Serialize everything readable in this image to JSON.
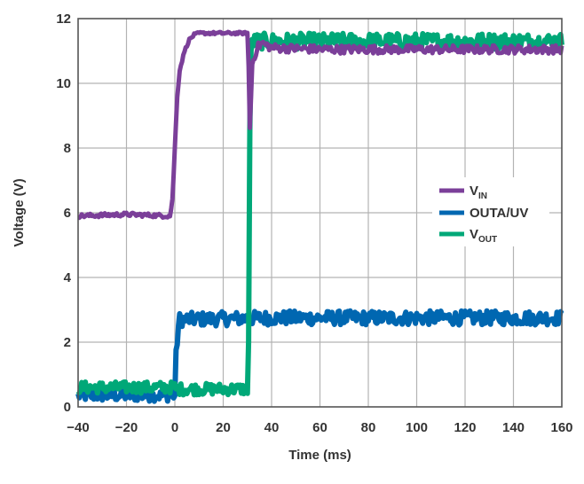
{
  "chart_data": {
    "type": "line",
    "title": "",
    "xlabel": "Time (ms)",
    "ylabel": "Voltage (V)",
    "xlim": [
      -40,
      160
    ],
    "ylim": [
      0,
      12
    ],
    "xticks": [
      -40,
      -20,
      0,
      20,
      40,
      60,
      80,
      100,
      120,
      140,
      160
    ],
    "yticks": [
      0,
      2,
      4,
      6,
      8,
      10,
      12
    ],
    "xtick_labels": [
      "−40",
      "−20",
      "0",
      "20",
      "40",
      "60",
      "80",
      "100",
      "120",
      "140",
      "160"
    ],
    "ytick_labels": [
      "0",
      "2",
      "4",
      "6",
      "8",
      "10",
      "12"
    ],
    "grid": true,
    "legend_position": "right-middle",
    "series": [
      {
        "name": "V_IN",
        "legend_main": "V",
        "legend_sub": "IN",
        "color": "#7b3f99",
        "x": [
          -40,
          -20,
          -2,
          -1,
          0,
          1,
          2,
          4,
          6,
          8,
          10,
          20,
          30,
          30.5,
          31,
          32,
          34,
          36,
          40,
          60,
          100,
          160
        ],
        "y": [
          5.9,
          5.95,
          5.9,
          6.4,
          8.0,
          9.6,
          10.4,
          11.0,
          11.35,
          11.5,
          11.55,
          11.55,
          11.55,
          10.5,
          8.6,
          10.6,
          11.1,
          11.25,
          11.1,
          11.05,
          11.05,
          11.05
        ]
      },
      {
        "name": "OUTA/UV",
        "legend_main": "OUTA/UV",
        "color": "#0067b1",
        "x": [
          -40,
          -1,
          0,
          0.5,
          1.5,
          2,
          40,
          100,
          160
        ],
        "y": [
          0.35,
          0.35,
          0.35,
          1.6,
          2.5,
          2.7,
          2.75,
          2.75,
          2.75
        ]
      },
      {
        "name": "V_OUT",
        "legend_main": "V",
        "legend_sub": "OUT",
        "color": "#00a878",
        "x": [
          -40,
          0,
          1,
          30,
          30.5,
          31,
          31.5,
          32,
          40,
          100,
          160
        ],
        "y": [
          0.6,
          0.6,
          0.55,
          0.55,
          2.0,
          8.6,
          10.8,
          11.3,
          11.3,
          11.3,
          11.3
        ]
      }
    ]
  }
}
